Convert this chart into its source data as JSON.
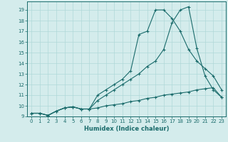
{
  "xlabel": "Humidex (Indice chaleur)",
  "ylabel": "",
  "background_color": "#d4ecec",
  "grid_color": "#b0d8d8",
  "line_color": "#1a6b6b",
  "xlim": [
    -0.5,
    23.5
  ],
  "ylim": [
    9.0,
    19.8
  ],
  "yticks": [
    9,
    10,
    11,
    12,
    13,
    14,
    15,
    16,
    17,
    18,
    19
  ],
  "xticks": [
    0,
    1,
    2,
    3,
    4,
    5,
    6,
    7,
    8,
    9,
    10,
    11,
    12,
    13,
    14,
    15,
    16,
    17,
    18,
    19,
    20,
    21,
    22,
    23
  ],
  "line1_x": [
    0,
    1,
    2,
    3,
    4,
    5,
    6,
    7,
    8,
    9,
    10,
    11,
    12,
    13,
    14,
    15,
    16,
    17,
    18,
    19,
    20,
    21,
    22,
    23
  ],
  "line1_y": [
    9.3,
    9.3,
    9.1,
    9.5,
    9.8,
    9.9,
    9.7,
    9.7,
    9.8,
    10.0,
    10.1,
    10.2,
    10.4,
    10.5,
    10.7,
    10.8,
    11.0,
    11.1,
    11.2,
    11.3,
    11.5,
    11.6,
    11.7,
    10.8
  ],
  "line2_x": [
    0,
    1,
    2,
    3,
    4,
    5,
    6,
    7,
    8,
    9,
    10,
    11,
    12,
    13,
    14,
    15,
    16,
    17,
    18,
    19,
    20,
    21,
    22,
    23
  ],
  "line2_y": [
    9.3,
    9.3,
    9.1,
    9.5,
    9.8,
    9.9,
    9.7,
    9.7,
    10.5,
    11.0,
    11.5,
    12.0,
    12.5,
    13.0,
    13.7,
    14.2,
    15.3,
    17.8,
    19.0,
    19.3,
    15.4,
    12.8,
    11.5,
    10.8
  ],
  "line3_x": [
    0,
    1,
    2,
    3,
    4,
    5,
    6,
    7,
    8,
    9,
    10,
    11,
    12,
    13,
    14,
    15,
    16,
    17,
    18,
    19,
    20,
    21,
    22,
    23
  ],
  "line3_y": [
    9.3,
    9.3,
    9.1,
    9.5,
    9.8,
    9.9,
    9.7,
    9.7,
    11.0,
    11.5,
    12.0,
    12.5,
    13.3,
    16.7,
    17.0,
    19.0,
    19.0,
    18.2,
    17.0,
    15.3,
    14.2,
    13.5,
    12.8,
    11.5
  ]
}
